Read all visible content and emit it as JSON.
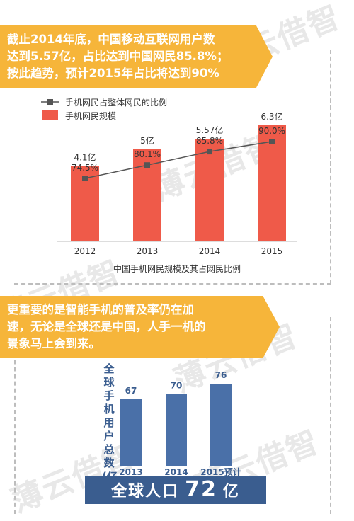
{
  "banner1": {
    "lines": [
      "截止2014年底，中国移动互联网用户数",
      "达到5.57亿，占比达到中国网民85.8%；",
      "按此趋势，预计2015年占比将达到90%"
    ],
    "color": "#f6b53a"
  },
  "banner2": {
    "lines": [
      "更重要的是智能手机的普及率仍在加",
      "速，无论是全球还是中国，人手一机的",
      "景象马上会到来。"
    ]
  },
  "watermark": "薄云借智",
  "chart_data": [
    {
      "type": "bar",
      "title": "中国手机网民规模及其占网民比例",
      "categories": [
        "2012",
        "2013",
        "2014",
        "2015"
      ],
      "series": [
        {
          "name": "手机网民规模",
          "type": "bar",
          "values": [
            4.1,
            5,
            5.57,
            6.3
          ],
          "labels": [
            "4.1亿",
            "5亿",
            "5.57亿",
            "6.3亿"
          ],
          "color": "#ef5a49"
        },
        {
          "name": "手机网民占整体网民的比例",
          "type": "line",
          "values": [
            74.5,
            80.1,
            85.8,
            90.0
          ],
          "labels": [
            "74.5%",
            "80.1%",
            "85.8%",
            "90.0%"
          ],
          "color": "#555555"
        }
      ],
      "legend": "top-left"
    },
    {
      "type": "bar",
      "ylabel": "全球手机用户总数(亿",
      "categories": [
        "2013",
        "2014",
        "2015预计"
      ],
      "values": [
        67,
        70,
        76
      ],
      "labels": [
        "67",
        "70",
        "76"
      ],
      "color": "#4a70a8"
    }
  ],
  "population": {
    "label": "全球人口",
    "value": "72",
    "unit": "亿"
  }
}
